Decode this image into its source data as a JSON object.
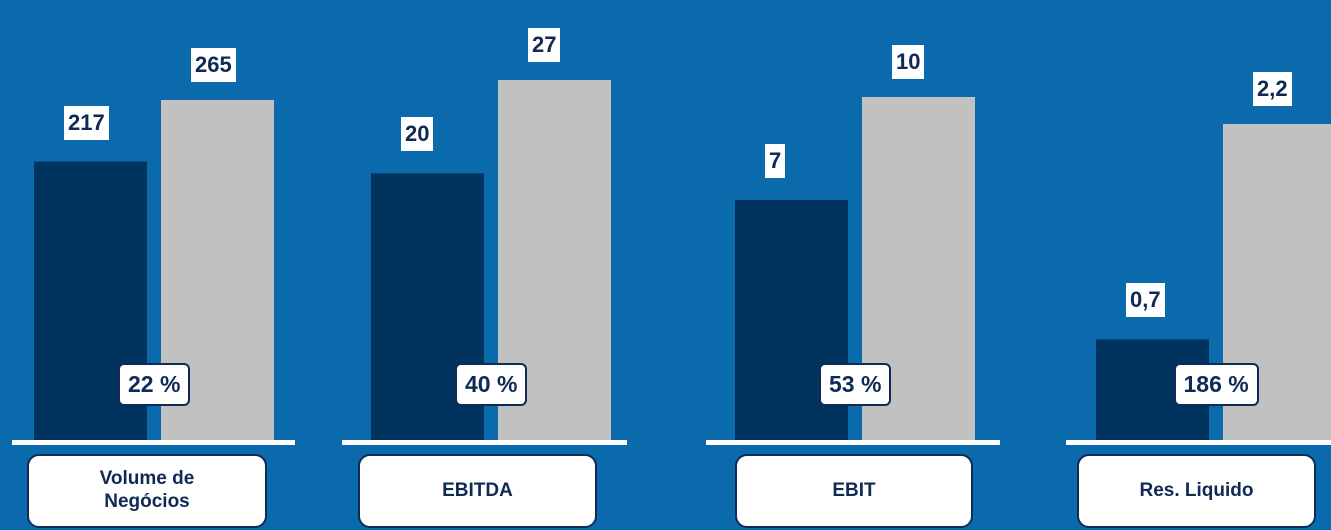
{
  "colors": {
    "background": "#0b6aac",
    "series_a": "#00335e",
    "series_b": "#c1c1c1",
    "baseline": "#ffffff",
    "label_text": "#0f2a55"
  },
  "chart_data": {
    "type": "bar",
    "grid": false,
    "groups": [
      {
        "category": "Volume de Negócios",
        "values": [
          217,
          265
        ],
        "labels": [
          "217",
          "265"
        ],
        "growth": "22 %"
      },
      {
        "category": "EBITDA",
        "values": [
          20,
          27
        ],
        "labels": [
          "20",
          "27"
        ],
        "growth": "40 %"
      },
      {
        "category": "EBIT",
        "values": [
          7,
          10
        ],
        "labels": [
          "7",
          "10"
        ],
        "growth": "53 %"
      },
      {
        "category": "Res. Liquido",
        "values": [
          0.7,
          2.2
        ],
        "labels": [
          "0,7",
          "2,2"
        ],
        "growth": "186 %"
      }
    ]
  }
}
